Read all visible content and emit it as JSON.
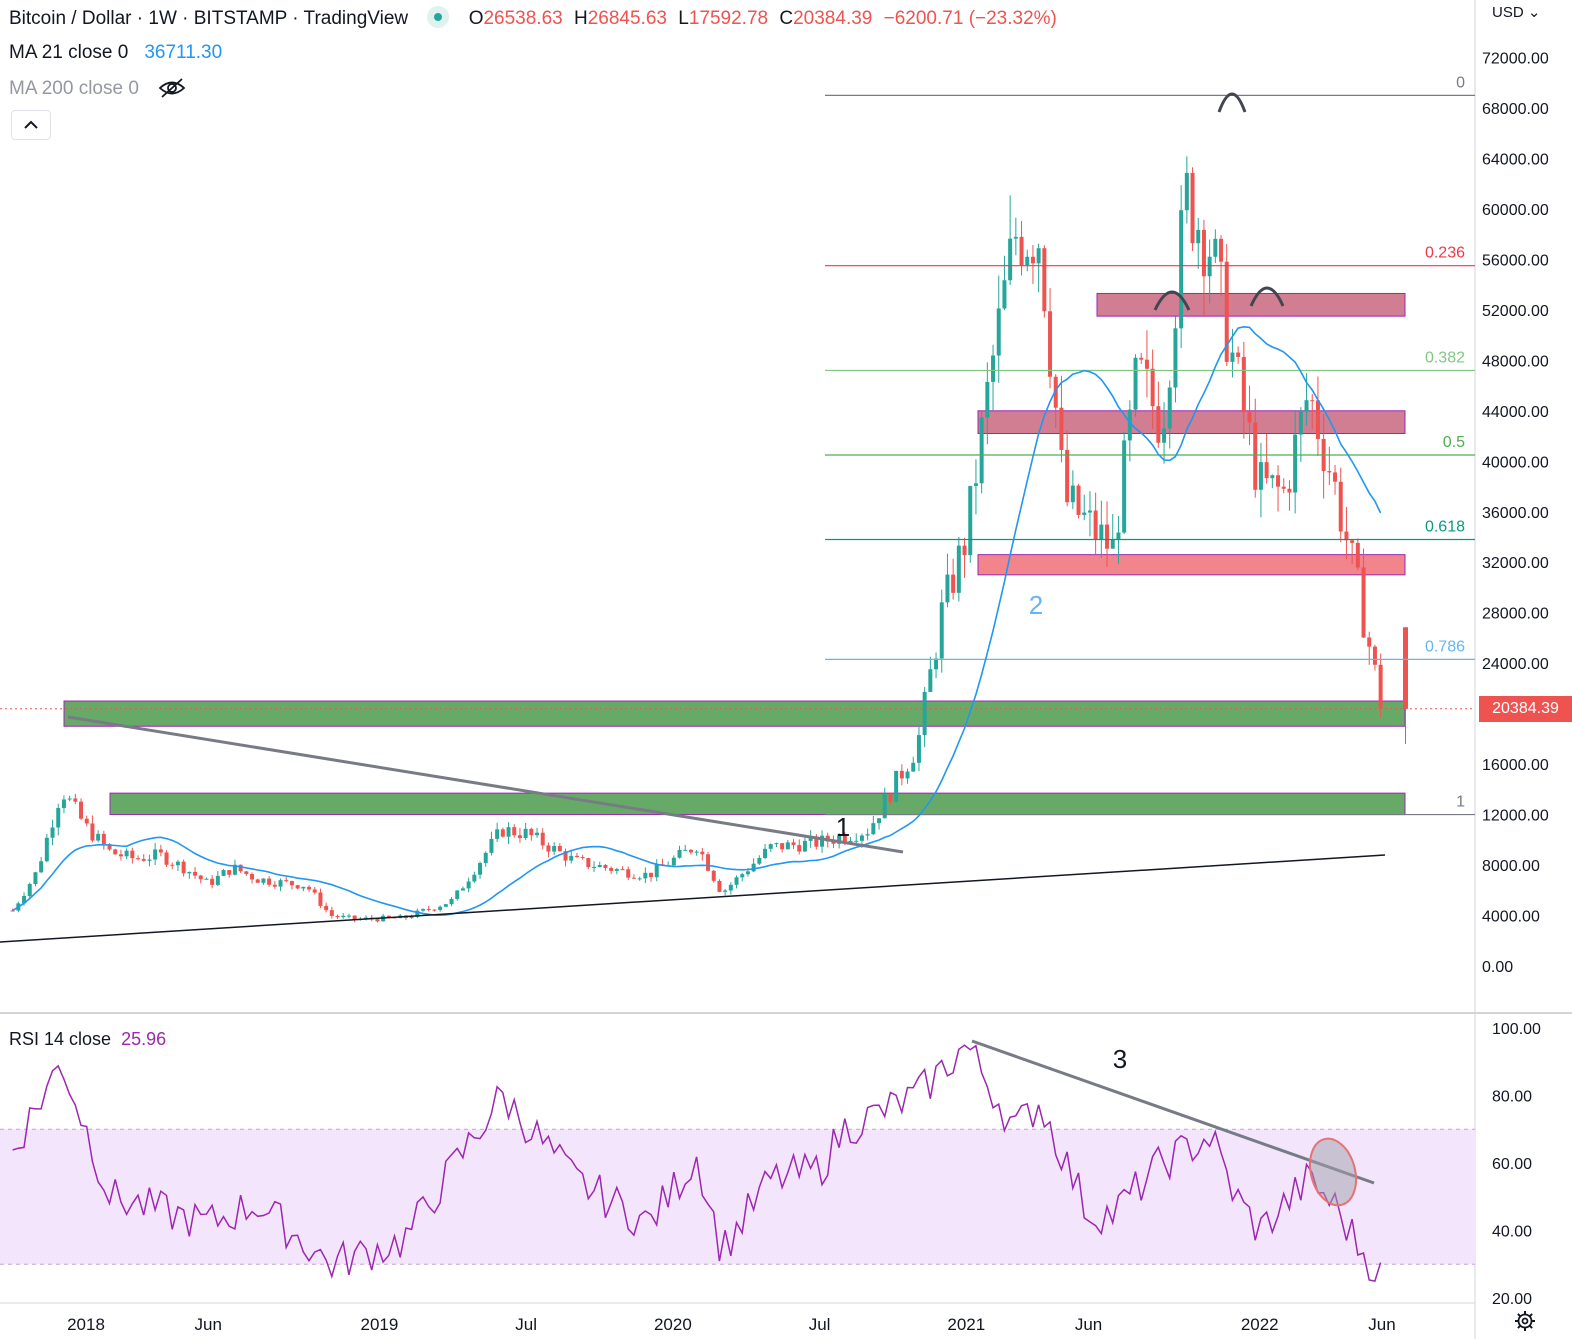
{
  "header": {
    "symbol": "Bitcoin / Dollar · 1W · BITSTAMP · TradingView",
    "ohlc": {
      "open_label": "O",
      "open": "26538.63",
      "high_label": "H",
      "high": "26845.63",
      "low_label": "L",
      "low": "17592.78",
      "close_label": "C",
      "close": "20384.39",
      "change": "−6200.71 (−23.32%)"
    },
    "ma21_label": "MA 21 close 0",
    "ma21_value": "36711.30",
    "ma200_label": "MA 200 close 0"
  },
  "rsi": {
    "label": "RSI 14 close",
    "value": "25.96"
  },
  "axis": {
    "currency": "USD",
    "last_price": "20384.39"
  },
  "colors": {
    "up": "#26a69a",
    "down": "#ef5350",
    "ma21": "#2196f3",
    "rsi": "#9c27b0",
    "rsi_band": "#f3e5fb",
    "green_zone": "#5aa65a",
    "red_zone": "#e57373",
    "magenta_zone": "#c2185b"
  },
  "icons": [
    "eye-off-icon",
    "chevron-up-icon",
    "gear-icon"
  ],
  "chart_data": [
    {
      "type": "candlestick",
      "title": "Bitcoin / Dollar · 1W · BITSTAMP",
      "y_ticks": [
        0,
        4000,
        8000,
        12000,
        16000,
        20000,
        24000,
        28000,
        32000,
        36000,
        40000,
        44000,
        48000,
        52000,
        56000,
        60000,
        64000,
        68000,
        72000
      ],
      "ylim": [
        0,
        72000
      ],
      "x_ticks": [
        "2018",
        "Jun",
        "2019",
        "Jul",
        "2020",
        "Jul",
        "2021",
        "Jun",
        "2022",
        "Jun"
      ],
      "close_path": [
        [
          "2017-10",
          4400
        ],
        [
          "2017-11",
          7500
        ],
        [
          "2017-12",
          14000
        ],
        [
          "2018-01",
          11000
        ],
        [
          "2018-02",
          9000
        ],
        [
          "2018-03",
          8500
        ],
        [
          "2018-04",
          8800
        ],
        [
          "2018-05",
          7800
        ],
        [
          "2018-06",
          6500
        ],
        [
          "2018-07",
          7800
        ],
        [
          "2018-08",
          6900
        ],
        [
          "2018-09",
          6600
        ],
        [
          "2018-10",
          6400
        ],
        [
          "2018-11",
          4000
        ],
        [
          "2018-12",
          3700
        ],
        [
          "2019-02",
          3800
        ],
        [
          "2019-04",
          5200
        ],
        [
          "2019-06",
          10800
        ],
        [
          "2019-07",
          10500
        ],
        [
          "2019-09",
          8300
        ],
        [
          "2019-11",
          7500
        ],
        [
          "2019-12",
          7200
        ],
        [
          "2020-02",
          9600
        ],
        [
          "2020-03",
          5800
        ],
        [
          "2020-05",
          9400
        ],
        [
          "2020-07",
          9800
        ],
        [
          "2020-09",
          10800
        ],
        [
          "2020-11",
          17500
        ],
        [
          "2020-12",
          28000
        ],
        [
          "2021-01",
          34000
        ],
        [
          "2021-02",
          47000
        ],
        [
          "2021-03",
          58000
        ],
        [
          "2021-04",
          58000
        ],
        [
          "2021-05",
          37000
        ],
        [
          "2021-06",
          35000
        ],
        [
          "2021-07",
          33000
        ],
        [
          "2021-08",
          47000
        ],
        [
          "2021-09",
          43000
        ],
        [
          "2021-10",
          61000
        ],
        [
          "2021-11",
          57000
        ],
        [
          "2021-12",
          47000
        ],
        [
          "2022-01",
          38000
        ],
        [
          "2022-02",
          37500
        ],
        [
          "2022-03",
          45500
        ],
        [
          "2022-04",
          38500
        ],
        [
          "2022-05",
          30000
        ],
        [
          "2022-06",
          20384
        ]
      ],
      "annotations": [
        "1",
        "2"
      ],
      "fibonacci": [
        {
          "label": "0",
          "price": 69000
        },
        {
          "label": "0.236",
          "price": 55500
        },
        {
          "label": "0.382",
          "price": 47200
        },
        {
          "label": "0.5",
          "price": 40500
        },
        {
          "label": "0.618",
          "price": 33800
        },
        {
          "label": "0.786",
          "price": 24300
        },
        {
          "label": "1",
          "price": 12000
        }
      ],
      "zones": [
        {
          "color": "green",
          "from": 19000,
          "to": 21000
        },
        {
          "color": "green",
          "from": 12000,
          "to": 13700
        },
        {
          "color": "red",
          "from": 31000,
          "to": 32600
        },
        {
          "color": "magenta",
          "from": 42200,
          "to": 44000
        },
        {
          "color": "magenta",
          "from": 51500,
          "to": 53300
        }
      ]
    },
    {
      "type": "line",
      "title": "RSI 14 close",
      "y_ticks": [
        20,
        40,
        60,
        80,
        100
      ],
      "ylim": [
        20,
        100
      ],
      "band": [
        30,
        70
      ],
      "values": [
        [
          "2017-10",
          64
        ],
        [
          "2017-12",
          90
        ],
        [
          "2018-02",
          50
        ],
        [
          "2018-06",
          42
        ],
        [
          "2018-08",
          48
        ],
        [
          "2018-11",
          30
        ],
        [
          "2019-02",
          37
        ],
        [
          "2019-06",
          80
        ],
        [
          "2019-09",
          55
        ],
        [
          "2019-12",
          42
        ],
        [
          "2020-02",
          62
        ],
        [
          "2020-03",
          34
        ],
        [
          "2020-05",
          55
        ],
        [
          "2020-07",
          58
        ],
        [
          "2020-08",
          70
        ],
        [
          "2020-11",
          80
        ],
        [
          "2021-01",
          95
        ],
        [
          "2021-03",
          70
        ],
        [
          "2021-04",
          78
        ],
        [
          "2021-06",
          45
        ],
        [
          "2021-07",
          45
        ],
        [
          "2021-09",
          60
        ],
        [
          "2021-11",
          68
        ],
        [
          "2021-12",
          50
        ],
        [
          "2022-01",
          40
        ],
        [
          "2022-03",
          55
        ],
        [
          "2022-04",
          48
        ],
        [
          "2022-05",
          36
        ],
        [
          "2022-06",
          26
        ]
      ],
      "annotations": [
        "3"
      ]
    }
  ]
}
